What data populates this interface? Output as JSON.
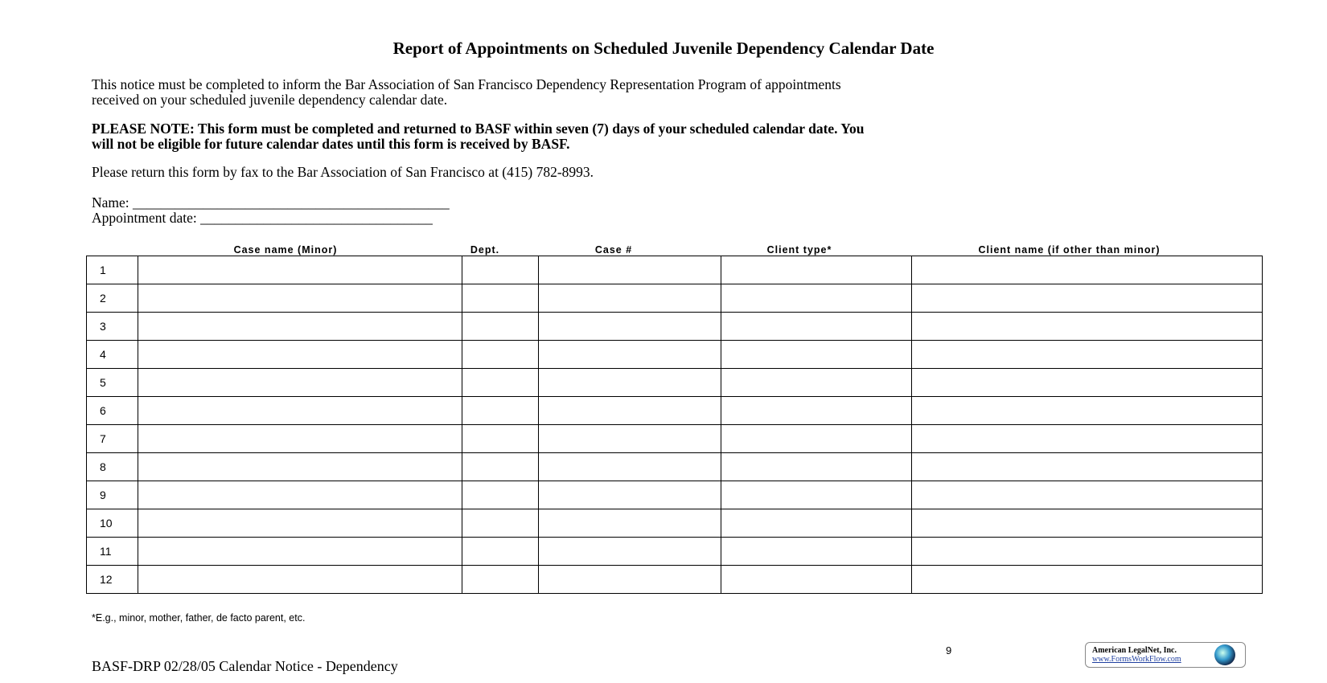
{
  "title": "Report of Appointments on Scheduled Juvenile Dependency Calendar Date",
  "intro_line1": "This notice must be completed to inform the Bar Association of San Francisco Dependency Representation Program of appointments",
  "intro_line2": "received on your scheduled juvenile dependency calendar date.",
  "note_line1": "PLEASE NOTE:  This form must be completed and returned to BASF within seven (7) days of your scheduled calendar date.  You",
  "note_line2": "will not be eligible for future calendar dates until this form is received by BASF.",
  "return_text": "Please return this form by fax to the Bar Association of San Francisco at (415) 782-8993.",
  "name_label": "Name: _____________________________________________",
  "appt_label": "Appointment date: _________________________________",
  "table": {
    "headers": [
      "Case name (Minor)",
      "Dept.",
      "Case #",
      "Client type*",
      "Client name (if other than minor)"
    ],
    "rows": [
      "1",
      "2",
      "3",
      "4",
      "5",
      "6",
      "7",
      "8",
      "9",
      "10",
      "11",
      "12"
    ]
  },
  "footnote": "*E.g., minor, mother, father, de facto parent, etc.",
  "page_number": "9",
  "footer": "BASF-DRP  02/28/05    Calendar Notice - Dependency",
  "logo": {
    "line1": "American LegalNet, Inc.",
    "line2": "www.FormsWorkFlow.com"
  }
}
